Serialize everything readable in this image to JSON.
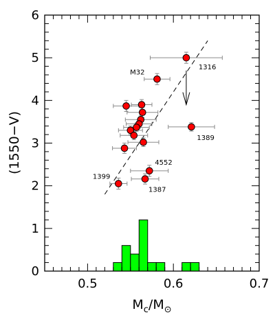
{
  "chart_data": {
    "type": "scatter",
    "xlabel": "M",
    "xlabel_sub": "c",
    "xlabel_sep": "/M",
    "xlabel_sun": "⊙",
    "ylabel": "(1550−V)",
    "xlim": [
      0.45,
      0.7
    ],
    "ylim": [
      0,
      6
    ],
    "xticks": [
      {
        "value": 0.5,
        "label": "0.5"
      },
      {
        "value": 0.6,
        "label": "0.6"
      },
      {
        "value": 0.7,
        "label": "0.7"
      }
    ],
    "yticks": [
      {
        "value": 0,
        "label": "0"
      },
      {
        "value": 1,
        "label": "1"
      },
      {
        "value": 2,
        "label": "2"
      },
      {
        "value": 3,
        "label": "3"
      },
      {
        "value": 4,
        "label": "4"
      },
      {
        "value": 5,
        "label": "5"
      },
      {
        "value": 6,
        "label": "6"
      }
    ],
    "points": [
      {
        "x": 0.615,
        "y": 5.0,
        "xerr": 0.042,
        "yerr": 0.13,
        "label": "1316"
      },
      {
        "x": 0.581,
        "y": 4.5,
        "xerr": 0.015,
        "yerr": 0.13,
        "label": "M32"
      },
      {
        "x": 0.545,
        "y": 3.87,
        "xerr": 0.015,
        "yerr": 0.13
      },
      {
        "x": 0.563,
        "y": 3.9,
        "xerr": 0.012,
        "yerr": 0.12
      },
      {
        "x": 0.564,
        "y": 3.72,
        "xerr": 0.018,
        "yerr": 0.12
      },
      {
        "x": 0.562,
        "y": 3.55,
        "xerr": 0.018,
        "yerr": 0.1
      },
      {
        "x": 0.56,
        "y": 3.45,
        "xerr": 0.015,
        "yerr": 0.1
      },
      {
        "x": 0.557,
        "y": 3.37,
        "xerr": 0.015,
        "yerr": 0.1
      },
      {
        "x": 0.55,
        "y": 3.3,
        "xerr": 0.014,
        "yerr": 0.1
      },
      {
        "x": 0.554,
        "y": 3.18,
        "xerr": 0.016,
        "yerr": 0.1
      },
      {
        "x": 0.565,
        "y": 3.02,
        "xerr": 0.018,
        "yerr": 0.1
      },
      {
        "x": 0.543,
        "y": 2.88,
        "xerr": 0.014,
        "yerr": 0.12
      },
      {
        "x": 0.621,
        "y": 3.38,
        "xerr": 0.027,
        "yerr": 0.1,
        "label": "1389"
      },
      {
        "x": 0.572,
        "y": 2.35,
        "xerr": 0.022,
        "yerr": 0.13,
        "label": "4552"
      },
      {
        "x": 0.567,
        "y": 2.16,
        "xerr": 0.016,
        "yerr": 0.12,
        "label": "1387"
      },
      {
        "x": 0.536,
        "y": 2.05,
        "xerr": 0.01,
        "yerr": 0.13,
        "label": "1399"
      }
    ],
    "trend_line": {
      "x": [
        0.52,
        0.64
      ],
      "y": [
        1.8,
        5.4
      ],
      "style": "dashed"
    },
    "arrow": {
      "x": 0.615,
      "y_from": 4.7,
      "y_to": 3.9
    },
    "histogram": {
      "color": "#00ff00",
      "bins": [
        {
          "x0": 0.53,
          "x1": 0.54,
          "y": 0.2
        },
        {
          "x0": 0.54,
          "x1": 0.55,
          "y": 0.6
        },
        {
          "x0": 0.55,
          "x1": 0.56,
          "y": 0.4
        },
        {
          "x0": 0.56,
          "x1": 0.57,
          "y": 1.2
        },
        {
          "x0": 0.57,
          "x1": 0.58,
          "y": 0.2
        },
        {
          "x0": 0.58,
          "x1": 0.59,
          "y": 0.2
        },
        {
          "x0": 0.6,
          "x1": 0.61,
          "y": 0.0
        },
        {
          "x0": 0.61,
          "x1": 0.62,
          "y": 0.2
        },
        {
          "x0": 0.62,
          "x1": 0.63,
          "y": 0.2
        }
      ]
    },
    "marker_color": "#ff0000",
    "grid": false
  }
}
